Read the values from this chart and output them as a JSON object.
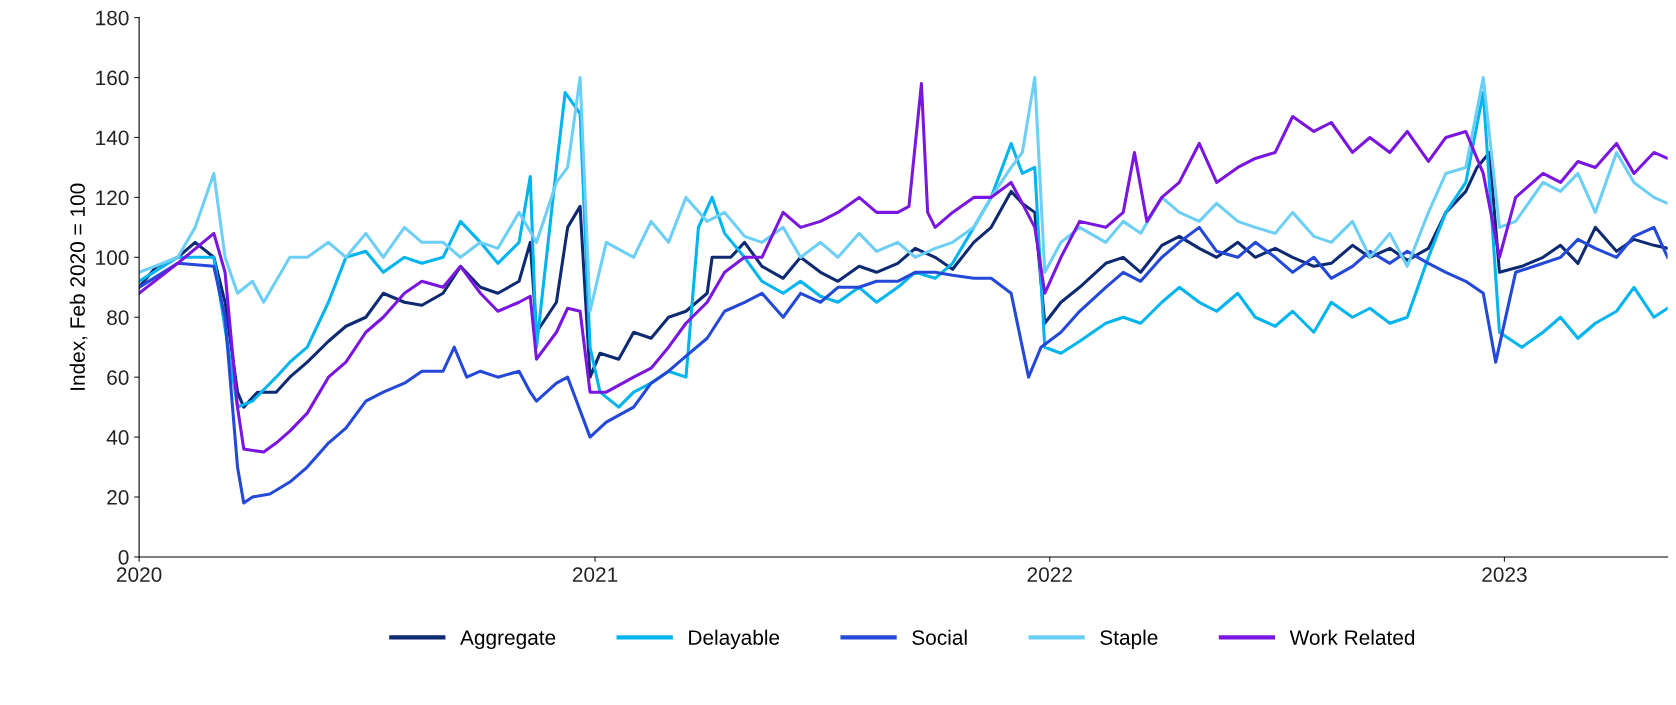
{
  "chart_data": {
    "type": "line",
    "ylabel": "Index, Feb 2020 = 100",
    "xlim": [
      "2020-01-01",
      "2023-05-12"
    ],
    "xticks": [
      "2020",
      "2021",
      "2022",
      "2023"
    ],
    "ylim": [
      0,
      180
    ],
    "yticks": [
      0,
      20,
      40,
      60,
      80,
      100,
      120,
      140,
      160,
      180
    ],
    "grid": false,
    "legend": "bottom",
    "marker": "none",
    "line_style": "solid",
    "series": [
      {
        "name": "Aggregate",
        "color": "#0d2a72",
        "x": [
          "2020-01-01",
          "2020-01-15",
          "2020-02-01",
          "2020-02-15",
          "2020-03-01",
          "2020-03-10",
          "2020-03-20",
          "2020-03-25",
          "2020-04-05",
          "2020-04-20",
          "2020-05-01",
          "2020-05-15",
          "2020-06-01",
          "2020-06-15",
          "2020-07-01",
          "2020-07-15",
          "2020-08-01",
          "2020-08-15",
          "2020-09-01",
          "2020-09-15",
          "2020-10-01",
          "2020-10-15",
          "2020-11-01",
          "2020-11-10",
          "2020-11-15",
          "2020-12-01",
          "2020-12-10",
          "2020-12-20",
          "2020-12-28",
          "2021-01-05",
          "2021-01-20",
          "2021-02-01",
          "2021-02-15",
          "2021-03-01",
          "2021-03-15",
          "2021-04-01",
          "2021-04-05",
          "2021-04-20",
          "2021-05-01",
          "2021-05-15",
          "2021-06-01",
          "2021-06-15",
          "2021-07-01",
          "2021-07-15",
          "2021-08-01",
          "2021-08-15",
          "2021-09-01",
          "2021-09-15",
          "2021-10-01",
          "2021-10-15",
          "2021-11-01",
          "2021-11-15",
          "2021-12-01",
          "2021-12-10",
          "2021-12-20",
          "2021-12-28",
          "2022-01-10",
          "2022-01-25",
          "2022-02-15",
          "2022-03-01",
          "2022-03-15",
          "2022-04-01",
          "2022-04-15",
          "2022-05-01",
          "2022-05-15",
          "2022-06-01",
          "2022-06-15",
          "2022-07-01",
          "2022-07-15",
          "2022-08-01",
          "2022-08-15",
          "2022-09-01",
          "2022-09-15",
          "2022-10-01",
          "2022-10-15",
          "2022-11-01",
          "2022-11-15",
          "2022-12-01",
          "2022-12-10",
          "2022-12-20",
          "2022-12-28",
          "2023-01-15",
          "2023-02-01",
          "2023-02-15",
          "2023-03-01",
          "2023-03-15",
          "2023-04-01",
          "2023-04-15",
          "2023-05-01",
          "2023-05-12"
        ],
        "values": [
          90,
          97,
          100,
          105,
          100,
          85,
          55,
          50,
          55,
          55,
          60,
          65,
          72,
          77,
          80,
          88,
          85,
          84,
          88,
          97,
          90,
          88,
          92,
          105,
          75,
          85,
          110,
          117,
          60,
          68,
          66,
          75,
          73,
          80,
          82,
          88,
          100,
          100,
          105,
          97,
          93,
          100,
          95,
          92,
          97,
          95,
          98,
          103,
          100,
          96,
          105,
          110,
          122,
          118,
          115,
          78,
          85,
          90,
          98,
          100,
          95,
          104,
          107,
          103,
          100,
          105,
          100,
          103,
          100,
          97,
          98,
          104,
          100,
          103,
          99,
          103,
          115,
          122,
          130,
          135,
          95,
          97,
          100,
          104,
          98,
          110,
          102,
          106,
          104,
          103
        ]
      },
      {
        "name": "Delayable",
        "color": "#00b4ef",
        "x": [
          "2020-01-01",
          "2020-02-01",
          "2020-03-01",
          "2020-03-20",
          "2020-04-01",
          "2020-04-20",
          "2020-05-01",
          "2020-05-15",
          "2020-06-01",
          "2020-06-15",
          "2020-07-01",
          "2020-07-15",
          "2020-08-01",
          "2020-08-15",
          "2020-09-01",
          "2020-09-15",
          "2020-10-01",
          "2020-10-15",
          "2020-11-01",
          "2020-11-10",
          "2020-11-15",
          "2020-12-01",
          "2020-12-08",
          "2020-12-20",
          "2020-12-28",
          "2021-01-05",
          "2021-01-20",
          "2021-02-01",
          "2021-02-15",
          "2021-03-01",
          "2021-03-15",
          "2021-03-25",
          "2021-04-05",
          "2021-04-15",
          "2021-05-01",
          "2021-05-15",
          "2021-06-01",
          "2021-06-15",
          "2021-07-01",
          "2021-07-15",
          "2021-08-01",
          "2021-08-15",
          "2021-09-01",
          "2021-09-15",
          "2021-10-01",
          "2021-10-15",
          "2021-11-01",
          "2021-11-15",
          "2021-12-01",
          "2021-12-10",
          "2021-12-20",
          "2021-12-28",
          "2022-01-10",
          "2022-01-25",
          "2022-02-15",
          "2022-03-01",
          "2022-03-15",
          "2022-04-01",
          "2022-04-15",
          "2022-05-01",
          "2022-05-15",
          "2022-06-01",
          "2022-06-15",
          "2022-07-01",
          "2022-07-15",
          "2022-08-01",
          "2022-08-15",
          "2022-09-01",
          "2022-09-15",
          "2022-10-01",
          "2022-10-15",
          "2022-11-01",
          "2022-11-15",
          "2022-12-01",
          "2022-12-15",
          "2022-12-28",
          "2023-01-15",
          "2023-02-01",
          "2023-02-15",
          "2023-03-01",
          "2023-03-15",
          "2023-04-01",
          "2023-04-15",
          "2023-05-01",
          "2023-05-12"
        ],
        "values": [
          92,
          100,
          100,
          50,
          52,
          60,
          65,
          70,
          85,
          100,
          102,
          95,
          100,
          98,
          100,
          112,
          105,
          98,
          105,
          127,
          70,
          130,
          155,
          148,
          70,
          55,
          50,
          55,
          58,
          62,
          60,
          110,
          120,
          108,
          100,
          92,
          88,
          92,
          87,
          85,
          90,
          85,
          90,
          95,
          93,
          98,
          110,
          120,
          138,
          128,
          130,
          70,
          68,
          72,
          78,
          80,
          78,
          85,
          90,
          85,
          82,
          88,
          80,
          77,
          82,
          75,
          85,
          80,
          83,
          78,
          80,
          100,
          115,
          125,
          155,
          75,
          70,
          75,
          80,
          73,
          78,
          82,
          90,
          80,
          83
        ]
      },
      {
        "name": "Social",
        "color": "#2448d8",
        "x": [
          "2020-01-01",
          "2020-02-01",
          "2020-03-01",
          "2020-03-10",
          "2020-03-20",
          "2020-03-25",
          "2020-04-01",
          "2020-04-15",
          "2020-05-01",
          "2020-05-15",
          "2020-06-01",
          "2020-06-15",
          "2020-07-01",
          "2020-07-15",
          "2020-08-01",
          "2020-08-15",
          "2020-09-01",
          "2020-09-10",
          "2020-09-20",
          "2020-10-01",
          "2020-10-15",
          "2020-11-01",
          "2020-11-10",
          "2020-11-15",
          "2020-12-01",
          "2020-12-10",
          "2020-12-28",
          "2021-01-10",
          "2021-02-01",
          "2021-02-15",
          "2021-03-01",
          "2021-03-15",
          "2021-04-01",
          "2021-04-15",
          "2021-05-01",
          "2021-05-15",
          "2021-06-01",
          "2021-06-15",
          "2021-07-01",
          "2021-07-15",
          "2021-08-01",
          "2021-08-15",
          "2021-09-01",
          "2021-09-15",
          "2021-10-01",
          "2021-10-15",
          "2021-11-01",
          "2021-11-15",
          "2021-12-01",
          "2021-12-15",
          "2021-12-25",
          "2022-01-10",
          "2022-01-25",
          "2022-02-15",
          "2022-03-01",
          "2022-03-15",
          "2022-04-01",
          "2022-04-15",
          "2022-05-01",
          "2022-05-15",
          "2022-06-01",
          "2022-06-15",
          "2022-07-01",
          "2022-07-15",
          "2022-08-01",
          "2022-08-15",
          "2022-09-01",
          "2022-09-15",
          "2022-10-01",
          "2022-10-15",
          "2022-11-01",
          "2022-11-15",
          "2022-12-01",
          "2022-12-15",
          "2022-12-25",
          "2023-01-10",
          "2023-02-01",
          "2023-02-15",
          "2023-03-01",
          "2023-03-15",
          "2023-04-01",
          "2023-04-15",
          "2023-05-01",
          "2023-05-12"
        ],
        "values": [
          90,
          98,
          97,
          80,
          30,
          18,
          20,
          21,
          25,
          30,
          38,
          43,
          52,
          55,
          58,
          62,
          62,
          70,
          60,
          62,
          60,
          62,
          55,
          52,
          58,
          60,
          40,
          45,
          50,
          58,
          62,
          67,
          73,
          82,
          85,
          88,
          80,
          88,
          85,
          90,
          90,
          92,
          92,
          95,
          95,
          94,
          93,
          93,
          88,
          60,
          70,
          75,
          82,
          90,
          95,
          92,
          100,
          105,
          110,
          102,
          100,
          105,
          100,
          95,
          100,
          93,
          97,
          102,
          98,
          102,
          98,
          95,
          92,
          88,
          65,
          95,
          98,
          100,
          106,
          103,
          100,
          107,
          110,
          100
        ]
      },
      {
        "name": "Staple",
        "color": "#6dcff6",
        "x": [
          "2020-01-01",
          "2020-02-01",
          "2020-02-15",
          "2020-03-01",
          "2020-03-10",
          "2020-03-20",
          "2020-04-01",
          "2020-04-10",
          "2020-05-01",
          "2020-05-15",
          "2020-06-01",
          "2020-06-15",
          "2020-07-01",
          "2020-07-15",
          "2020-08-01",
          "2020-08-15",
          "2020-09-01",
          "2020-09-15",
          "2020-10-01",
          "2020-10-15",
          "2020-11-01",
          "2020-11-15",
          "2020-12-01",
          "2020-12-10",
          "2020-12-20",
          "2020-12-28",
          "2021-01-10",
          "2021-02-01",
          "2021-02-15",
          "2021-03-01",
          "2021-03-15",
          "2021-04-01",
          "2021-04-15",
          "2021-05-01",
          "2021-05-15",
          "2021-06-01",
          "2021-06-15",
          "2021-07-01",
          "2021-07-15",
          "2021-08-01",
          "2021-08-15",
          "2021-09-01",
          "2021-09-15",
          "2021-10-01",
          "2021-10-15",
          "2021-11-01",
          "2021-11-15",
          "2021-12-01",
          "2021-12-10",
          "2021-12-20",
          "2021-12-28",
          "2022-01-10",
          "2022-01-25",
          "2022-02-15",
          "2022-03-01",
          "2022-03-15",
          "2022-04-01",
          "2022-04-15",
          "2022-05-01",
          "2022-05-15",
          "2022-06-01",
          "2022-06-15",
          "2022-07-01",
          "2022-07-15",
          "2022-08-01",
          "2022-08-15",
          "2022-09-01",
          "2022-09-15",
          "2022-10-01",
          "2022-10-15",
          "2022-11-01",
          "2022-11-15",
          "2022-12-01",
          "2022-12-15",
          "2022-12-28",
          "2023-01-10",
          "2023-02-01",
          "2023-02-15",
          "2023-03-01",
          "2023-03-15",
          "2023-04-01",
          "2023-04-15",
          "2023-05-01",
          "2023-05-12"
        ],
        "values": [
          95,
          100,
          110,
          128,
          100,
          88,
          92,
          85,
          100,
          100,
          105,
          100,
          108,
          100,
          110,
          105,
          105,
          100,
          105,
          103,
          115,
          105,
          125,
          130,
          160,
          82,
          105,
          100,
          112,
          105,
          120,
          112,
          115,
          107,
          105,
          110,
          100,
          105,
          100,
          108,
          102,
          105,
          100,
          103,
          105,
          110,
          120,
          130,
          135,
          160,
          95,
          105,
          110,
          105,
          112,
          108,
          120,
          115,
          112,
          118,
          112,
          110,
          108,
          115,
          107,
          105,
          112,
          100,
          108,
          97,
          115,
          128,
          130,
          160,
          110,
          112,
          125,
          122,
          128,
          115,
          135,
          125,
          120,
          118
        ]
      },
      {
        "name": "Work Related",
        "color": "#7b15e0",
        "x": [
          "2020-01-01",
          "2020-02-01",
          "2020-03-01",
          "2020-03-10",
          "2020-03-20",
          "2020-03-25",
          "2020-04-10",
          "2020-04-20",
          "2020-05-01",
          "2020-05-15",
          "2020-06-01",
          "2020-06-15",
          "2020-07-01",
          "2020-07-15",
          "2020-08-01",
          "2020-08-15",
          "2020-09-01",
          "2020-09-15",
          "2020-10-01",
          "2020-10-15",
          "2020-11-01",
          "2020-11-10",
          "2020-11-15",
          "2020-12-01",
          "2020-12-10",
          "2020-12-20",
          "2020-12-28",
          "2021-01-10",
          "2021-02-01",
          "2021-02-15",
          "2021-03-01",
          "2021-03-15",
          "2021-04-01",
          "2021-04-15",
          "2021-05-01",
          "2021-05-15",
          "2021-06-01",
          "2021-06-15",
          "2021-07-01",
          "2021-07-15",
          "2021-08-01",
          "2021-08-15",
          "2021-09-01",
          "2021-09-10",
          "2021-09-20",
          "2021-09-25",
          "2021-10-01",
          "2021-10-15",
          "2021-11-01",
          "2021-11-15",
          "2021-12-01",
          "2021-12-10",
          "2021-12-20",
          "2021-12-28",
          "2022-01-10",
          "2022-01-25",
          "2022-02-15",
          "2022-03-01",
          "2022-03-10",
          "2022-03-20",
          "2022-04-01",
          "2022-04-15",
          "2022-05-01",
          "2022-05-15",
          "2022-06-01",
          "2022-06-15",
          "2022-07-01",
          "2022-07-15",
          "2022-08-01",
          "2022-08-15",
          "2022-09-01",
          "2022-09-15",
          "2022-10-01",
          "2022-10-15",
          "2022-11-01",
          "2022-11-15",
          "2022-12-01",
          "2022-12-15",
          "2022-12-28",
          "2023-01-10",
          "2023-02-01",
          "2023-02-15",
          "2023-03-01",
          "2023-03-15",
          "2023-04-01",
          "2023-04-15",
          "2023-05-01",
          "2023-05-12"
        ],
        "values": [
          88,
          98,
          108,
          95,
          50,
          36,
          35,
          38,
          42,
          48,
          60,
          65,
          75,
          80,
          88,
          92,
          90,
          97,
          88,
          82,
          85,
          87,
          66,
          75,
          83,
          82,
          55,
          55,
          60,
          63,
          70,
          78,
          85,
          95,
          100,
          100,
          115,
          110,
          112,
          115,
          120,
          115,
          115,
          117,
          158,
          115,
          110,
          115,
          120,
          120,
          125,
          118,
          110,
          88,
          100,
          112,
          110,
          115,
          135,
          112,
          120,
          125,
          138,
          125,
          130,
          133,
          135,
          147,
          142,
          145,
          135,
          140,
          135,
          142,
          132,
          140,
          142,
          128,
          100,
          120,
          128,
          125,
          132,
          130,
          138,
          128,
          135,
          133
        ]
      }
    ]
  }
}
